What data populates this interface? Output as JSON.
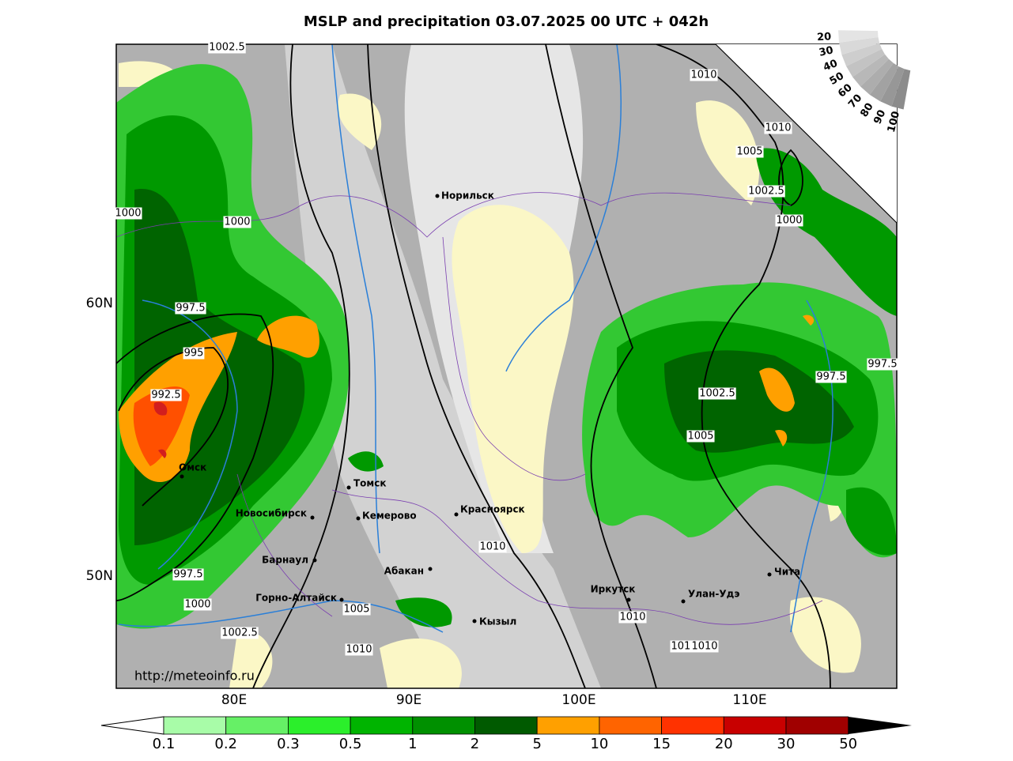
{
  "header": {
    "title": "MSLP and precipitation 03.07.2025 00 UTC + 042h"
  },
  "map": {
    "longitude_labels": [
      "80E",
      "90E",
      "100E",
      "110E"
    ],
    "latitude_labels": [
      "60N",
      "50N"
    ],
    "cities": [
      "Норильск",
      "Томск",
      "Кемерово",
      "Новосибирск",
      "Красноярск",
      "Омск",
      "Барнаул",
      "Абакан",
      "Горно-Алтайск",
      "Кызыл",
      "Иркутск",
      "Улан-Удэ",
      "Чита"
    ],
    "isobar_labels": [
      "1002.5",
      "1010",
      "1010",
      "1005",
      "1002.5",
      "1000",
      "1000",
      "1000",
      "997.5",
      "995",
      "992.5",
      "1002.5",
      "1005",
      "997.5",
      "997.5",
      "1010",
      "997.5",
      "1000",
      "1002.5",
      "1005",
      "1010",
      "1010",
      "1010",
      "1010"
    ],
    "cloud_scale_labels": [
      "100",
      "90",
      "80",
      "70",
      "60",
      "50",
      "40",
      "30",
      "20"
    ],
    "source_url": "http://meteoinfo.ru"
  },
  "colorbar": {
    "labels": [
      "0.1",
      "0.2",
      "0.3",
      "0.5",
      "1",
      "2",
      "5",
      "10",
      "15",
      "20",
      "30",
      "50"
    ]
  }
}
